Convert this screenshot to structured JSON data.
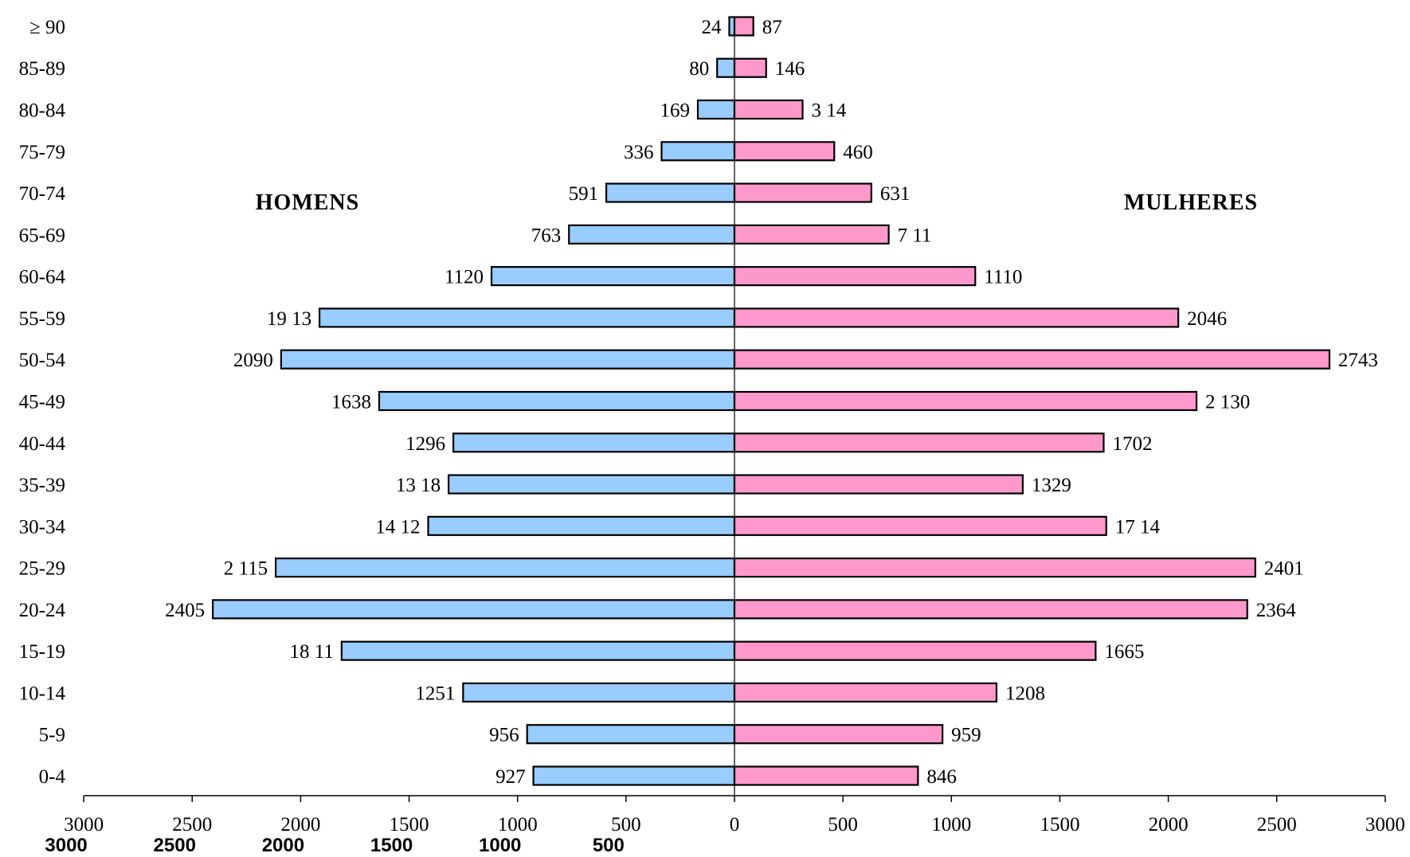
{
  "chart_data": {
    "type": "bar",
    "orientation": "horizontal",
    "variant": "population-pyramid",
    "categories": [
      "0-4",
      "5-9",
      "10-14",
      "15-19",
      "20-24",
      "25-29",
      "30-34",
      "35-39",
      "40-44",
      "45-49",
      "50-54",
      "55-59",
      "60-64",
      "65-69",
      "70-74",
      "75-79",
      "80-84",
      "85-89",
      "≥ 90"
    ],
    "series": [
      {
        "name": "HOMENS",
        "side": "left",
        "color": "#99CCFF",
        "values": [
          927,
          956,
          1251,
          1811,
          2405,
          2115,
          1412,
          1318,
          1296,
          1638,
          2090,
          1913,
          1120,
          763,
          591,
          336,
          169,
          80,
          24
        ],
        "labels": [
          "927",
          "956",
          "1251",
          "18 11",
          "2405",
          "2 115",
          "14 12",
          "13 18",
          "1296",
          "1638",
          "2090",
          "19 13",
          "1120",
          "763",
          "591",
          "336",
          "169",
          "80",
          "24"
        ]
      },
      {
        "name": "MULHERES",
        "side": "right",
        "color": "#FF99CC",
        "values": [
          846,
          959,
          1208,
          1665,
          2364,
          2401,
          1714,
          1329,
          1702,
          2130,
          2743,
          2046,
          1110,
          711,
          631,
          460,
          314,
          146,
          87
        ],
        "labels": [
          "846",
          "959",
          "1208",
          "1665",
          "2364",
          "2401",
          "17 14",
          "1329",
          "1702",
          "2 130",
          "2743",
          "2046",
          "1110",
          "7 11",
          "631",
          "460",
          "3 14",
          "146",
          "87"
        ]
      }
    ],
    "x_axis": {
      "range": [
        -3000,
        3000
      ],
      "ticks": [
        -3000,
        -2500,
        -2000,
        -1500,
        -1000,
        -500,
        0,
        500,
        1000,
        1500,
        2000,
        2500,
        3000
      ],
      "tick_labels": [
        "3000",
        "2500",
        "2000",
        "1500",
        "1000",
        "500",
        "0",
        "500",
        "1000",
        "1500",
        "2000",
        "2500",
        "3000"
      ],
      "ghost_tick_labels": [
        "3000",
        "2500",
        "2000",
        "1500",
        "1000",
        "500"
      ]
    },
    "grid": false,
    "legend": "none",
    "bar_outline": "#000000"
  }
}
